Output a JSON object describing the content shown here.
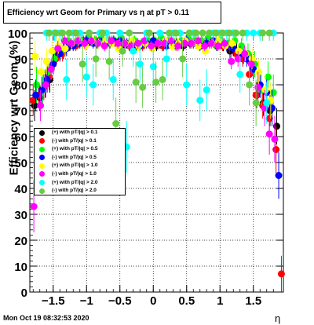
{
  "chart_data": {
    "type": "scatter",
    "title": "Efficiency wrt Geom for Primary vs   η at pT > 0.11",
    "xlabel": "η",
    "ylabel": "Efficiency wrt Geom (%)",
    "xlim": [
      -1.85,
      1.95
    ],
    "ylim": [
      0,
      100
    ],
    "x_ticks": [
      -1.5,
      -1,
      -0.5,
      0,
      0.5,
      1,
      1.5
    ],
    "x_tick_labels": [
      "−1.5",
      "−1",
      "−0.5",
      "0",
      "0.5",
      "1",
      "1.5"
    ],
    "y_ticks": [
      0,
      10,
      20,
      30,
      40,
      50,
      60,
      70,
      80,
      90,
      100
    ],
    "y_tick_labels": [
      "0",
      "10",
      "20",
      "30",
      "40",
      "50",
      "60",
      "70",
      "80",
      "90",
      "100"
    ],
    "grid": true,
    "legend_position": "left-middle",
    "series": [
      {
        "name": "(+) with pT/|q| > 0.1",
        "color": "#000000",
        "x": [
          -1.78,
          -1.7,
          -1.62,
          -1.55,
          -1.45,
          -1.35,
          -1.25,
          -1.15,
          -1.05,
          -0.95,
          -0.85,
          -0.75,
          -0.65,
          -0.55,
          -0.45,
          -0.35,
          -0.25,
          -0.15,
          -0.05,
          0.05,
          0.15,
          0.25,
          0.35,
          0.45,
          0.55,
          0.65,
          0.75,
          0.85,
          0.95,
          1.05,
          1.15,
          1.25,
          1.35,
          1.45,
          1.55,
          1.65,
          1.75,
          1.85
        ],
        "y": [
          72,
          75,
          80,
          82,
          91,
          93,
          95,
          96,
          97,
          97,
          96,
          97,
          96,
          96,
          95,
          95,
          95,
          96,
          96,
          95,
          95,
          96,
          96,
          95,
          96,
          96,
          96,
          97,
          95,
          95,
          93,
          93,
          91,
          89,
          76,
          73,
          70,
          64
        ],
        "err": [
          6,
          5,
          5,
          5,
          3,
          3,
          2,
          2,
          2,
          2,
          2,
          2,
          2,
          2,
          2,
          2,
          2,
          2,
          2,
          2,
          2,
          2,
          2,
          2,
          2,
          2,
          2,
          2,
          2,
          2,
          3,
          3,
          3,
          3,
          5,
          5,
          6,
          7
        ]
      },
      {
        "name": "(-) with pT/|q| > 0.1",
        "color": "#ff0000",
        "x": [
          -1.8,
          -1.72,
          -1.64,
          -1.56,
          -1.46,
          -1.36,
          -1.26,
          -1.16,
          -1.06,
          -0.96,
          -0.86,
          -0.76,
          -0.66,
          -0.56,
          -0.46,
          -0.36,
          -0.26,
          -0.16,
          -0.06,
          0.04,
          0.14,
          0.24,
          0.34,
          0.44,
          0.54,
          0.64,
          0.74,
          0.84,
          0.94,
          1.04,
          1.14,
          1.24,
          1.34,
          1.44,
          1.54,
          1.64,
          1.74,
          1.84,
          1.92
        ],
        "y": [
          74,
          76,
          79,
          83,
          90,
          92,
          96,
          95,
          96,
          97,
          97,
          96,
          97,
          96,
          96,
          95,
          96,
          95,
          96,
          96,
          95,
          96,
          95,
          96,
          97,
          96,
          95,
          96,
          96,
          95,
          95,
          92,
          90,
          84,
          76,
          72,
          67,
          55,
          7
        ],
        "err": [
          6,
          5,
          5,
          5,
          3,
          3,
          2,
          2,
          2,
          2,
          2,
          2,
          2,
          2,
          2,
          2,
          2,
          2,
          2,
          2,
          2,
          2,
          2,
          2,
          2,
          2,
          2,
          2,
          2,
          2,
          3,
          3,
          3,
          4,
          5,
          5,
          7,
          9,
          7
        ]
      },
      {
        "name": "(+) with pT/|q| > 0.5",
        "color": "#00ff00",
        "x": [
          -1.75,
          -1.66,
          -1.58,
          -1.48,
          -1.38,
          -1.28,
          -1.18,
          -1.08,
          -0.98,
          -0.88,
          -0.78,
          -0.68,
          -0.58,
          -0.48,
          -0.38,
          -0.28,
          -0.18,
          -0.08,
          0.02,
          0.12,
          0.22,
          0.32,
          0.42,
          0.52,
          0.62,
          0.72,
          0.82,
          0.92,
          1.02,
          1.12,
          1.22,
          1.32,
          1.42,
          1.52,
          1.62,
          1.72,
          1.8
        ],
        "y": [
          80,
          78,
          85,
          90,
          93,
          97,
          96,
          97,
          98,
          97,
          98,
          97,
          97,
          98,
          96,
          97,
          96,
          97,
          97,
          98,
          97,
          96,
          97,
          98,
          97,
          97,
          98,
          96,
          97,
          96,
          97,
          95,
          92,
          88,
          78,
          83,
          77
        ],
        "err": [
          7,
          6,
          5,
          4,
          3,
          2,
          2,
          2,
          2,
          2,
          2,
          2,
          2,
          2,
          2,
          2,
          2,
          2,
          2,
          2,
          2,
          2,
          2,
          2,
          2,
          2,
          2,
          2,
          2,
          2,
          2,
          3,
          4,
          5,
          6,
          6,
          7
        ]
      },
      {
        "name": "(-) with pT/|q| > 0.5",
        "color": "#0000ff",
        "x": [
          -1.76,
          -1.67,
          -1.59,
          -1.5,
          -1.4,
          -1.3,
          -1.2,
          -1.1,
          -1.0,
          -0.9,
          -0.8,
          -0.7,
          -0.6,
          -0.5,
          -0.4,
          -0.3,
          -0.2,
          -0.1,
          0.0,
          0.1,
          0.2,
          0.3,
          0.4,
          0.5,
          0.6,
          0.7,
          0.8,
          0.9,
          1.0,
          1.1,
          1.2,
          1.3,
          1.4,
          1.5,
          1.6,
          1.7,
          1.78,
          1.88
        ],
        "y": [
          76,
          78,
          82,
          88,
          92,
          94,
          95,
          96,
          97,
          96,
          97,
          96,
          97,
          97,
          96,
          96,
          95,
          96,
          97,
          96,
          95,
          96,
          96,
          97,
          96,
          95,
          96,
          97,
          96,
          95,
          94,
          92,
          90,
          86,
          80,
          77,
          71,
          45
        ],
        "err": [
          6,
          5,
          5,
          4,
          3,
          3,
          2,
          2,
          2,
          2,
          2,
          2,
          2,
          2,
          2,
          2,
          2,
          2,
          2,
          2,
          2,
          2,
          2,
          2,
          2,
          2,
          2,
          2,
          2,
          2,
          3,
          3,
          3,
          4,
          5,
          5,
          7,
          9
        ]
      },
      {
        "name": "(+) with pT/|q| > 1.0",
        "color": "#ffff00",
        "x": [
          -1.77,
          -1.68,
          -1.6,
          -1.52,
          -1.42,
          -1.32,
          -1.22,
          -1.12,
          -1.02,
          -0.92,
          -0.82,
          -0.72,
          -0.62,
          -0.52,
          -0.42,
          -0.32,
          -0.22,
          -0.12,
          -0.02,
          0.08,
          0.18,
          0.28,
          0.38,
          0.48,
          0.58,
          0.68,
          0.78,
          0.88,
          0.98,
          1.08,
          1.18,
          1.28,
          1.38,
          1.48,
          1.58,
          1.68,
          1.76
        ],
        "y": [
          91,
          85,
          89,
          93,
          95,
          94,
          96,
          97,
          95,
          97,
          96,
          97,
          96,
          94,
          96,
          97,
          95,
          96,
          94,
          96,
          97,
          95,
          96,
          97,
          96,
          95,
          93,
          96,
          97,
          95,
          96,
          93,
          92,
          90,
          85,
          78,
          74
        ],
        "err": [
          6,
          6,
          5,
          4,
          3,
          3,
          2,
          2,
          2,
          2,
          2,
          2,
          2,
          2,
          2,
          2,
          2,
          2,
          2,
          2,
          2,
          2,
          2,
          2,
          2,
          2,
          2,
          2,
          2,
          2,
          2,
          3,
          3,
          4,
          5,
          6,
          7
        ]
      },
      {
        "name": "(-) with pT/|q| > 1.0",
        "color": "#ff00ff",
        "x": [
          -1.79,
          -1.69,
          -1.61,
          -1.53,
          -1.43,
          -1.33,
          -1.23,
          -1.13,
          -1.03,
          -0.93,
          -0.83,
          -0.73,
          -0.63,
          -0.53,
          -0.43,
          -0.33,
          -0.23,
          -0.13,
          -0.03,
          0.07,
          0.17,
          0.27,
          0.37,
          0.47,
          0.57,
          0.67,
          0.77,
          0.87,
          0.97,
          1.07,
          1.17,
          1.27,
          1.37,
          1.47,
          1.57,
          1.67,
          1.74,
          1.82
        ],
        "y": [
          33,
          72,
          80,
          86,
          94,
          97,
          96,
          97,
          96,
          97,
          96,
          95,
          97,
          96,
          96,
          95,
          96,
          97,
          95,
          96,
          96,
          97,
          95,
          96,
          96,
          97,
          95,
          96,
          95,
          96,
          89,
          90,
          92,
          88,
          79,
          71,
          61,
          59
        ],
        "err": [
          10,
          6,
          5,
          4,
          3,
          2,
          2,
          2,
          2,
          2,
          2,
          2,
          2,
          2,
          2,
          2,
          2,
          2,
          2,
          2,
          2,
          2,
          2,
          2,
          2,
          2,
          2,
          2,
          2,
          2,
          3,
          3,
          3,
          4,
          6,
          7,
          8,
          9
        ]
      },
      {
        "name": "(+) with pT/|q| > 2.0",
        "color": "#00ffff",
        "x": [
          -1.6,
          -1.48,
          -1.4,
          -1.3,
          -1.2,
          -1.1,
          -1.0,
          -0.9,
          -0.8,
          -0.7,
          -0.6,
          -0.5,
          -0.4,
          -0.3,
          -0.2,
          -0.1,
          0.0,
          0.1,
          0.2,
          0.3,
          0.4,
          0.5,
          0.6,
          0.7,
          0.8,
          0.9,
          1.0,
          1.1,
          1.2,
          1.3,
          1.4,
          1.5,
          1.6,
          1.7,
          1.8
        ],
        "y": [
          100,
          100,
          100,
          82,
          100,
          100,
          83,
          80,
          100,
          100,
          82,
          100,
          56,
          93,
          88,
          100,
          87,
          100,
          90,
          100,
          100,
          80,
          100,
          74,
          78,
          100,
          100,
          100,
          100,
          84,
          100,
          100,
          100,
          73,
          100
        ],
        "err": [
          3,
          3,
          3,
          8,
          3,
          3,
          8,
          8,
          3,
          3,
          8,
          3,
          10,
          6,
          7,
          3,
          7,
          3,
          7,
          3,
          3,
          8,
          3,
          8,
          8,
          3,
          3,
          3,
          3,
          7,
          3,
          3,
          3,
          8,
          3
        ]
      },
      {
        "name": "(-) with pT/|q| > 2.0",
        "color": "#66cc44",
        "x": [
          -1.56,
          -1.46,
          -1.36,
          -1.26,
          -1.16,
          -1.06,
          -0.96,
          -0.86,
          -0.76,
          -0.66,
          -0.56,
          -0.46,
          -0.36,
          -0.26,
          -0.16,
          -0.06,
          0.04,
          0.14,
          0.24,
          0.34,
          0.44,
          0.54,
          0.64,
          0.74,
          0.84,
          0.94,
          1.04,
          1.14,
          1.24,
          1.34,
          1.44,
          1.54,
          1.64,
          1.74
        ],
        "y": [
          100,
          100,
          100,
          100,
          100,
          88,
          100,
          90,
          100,
          89,
          65,
          93,
          100,
          81,
          79,
          100,
          81,
          82,
          100,
          100,
          90,
          100,
          100,
          100,
          100,
          100,
          100,
          100,
          100,
          100,
          80,
          73,
          100,
          100
        ],
        "err": [
          3,
          3,
          3,
          3,
          3,
          7,
          3,
          7,
          3,
          7,
          10,
          6,
          3,
          8,
          8,
          3,
          8,
          8,
          3,
          3,
          7,
          3,
          3,
          3,
          3,
          3,
          3,
          3,
          3,
          3,
          8,
          9,
          3,
          3
        ]
      }
    ]
  },
  "footer_text": "Mon Oct 19 08:32:53 2020"
}
